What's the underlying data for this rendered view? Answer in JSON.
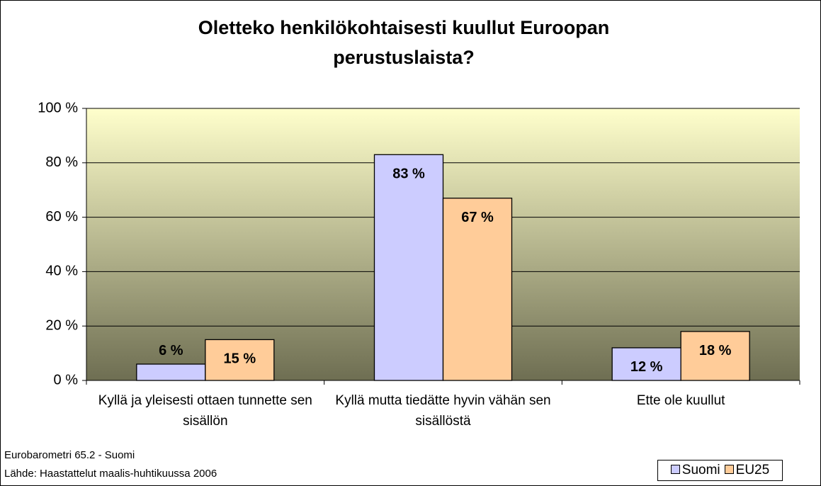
{
  "chart_data": {
    "type": "bar",
    "title": "Oletteko henkilökohtaisesti kuullut Euroopan perustuslaista?",
    "categories": [
      "Kyllä ja yleisesti ottaen tunnette sen sisällön",
      "Kyllä mutta tiedätte hyvin vähän sen sisällöstä",
      "Ette ole kuullut"
    ],
    "series": [
      {
        "name": "Suomi",
        "color": "#ccccff",
        "values": [
          6,
          83,
          12
        ],
        "value_labels": [
          "6 %",
          "83 %",
          "12 %"
        ]
      },
      {
        "name": "EU25",
        "color": "#ffcc99",
        "values": [
          15,
          67,
          18
        ],
        "value_labels": [
          "15 %",
          "67 %",
          "18 %"
        ]
      }
    ],
    "ylim": [
      0,
      100
    ],
    "yticks": [
      {
        "value": 0,
        "label": "0 %"
      },
      {
        "value": 20,
        "label": "20 %"
      },
      {
        "value": 40,
        "label": "40 %"
      },
      {
        "value": 60,
        "label": "60 %"
      },
      {
        "value": 80,
        "label": "80 %"
      },
      {
        "value": 100,
        "label": "100 %"
      }
    ],
    "grid": true,
    "legend": "bottom-right",
    "notes": [
      "Eurobarometri 65.2 - Suomi",
      "Lähde: Haastattelut maalis-huhtikuussa 2006"
    ]
  }
}
